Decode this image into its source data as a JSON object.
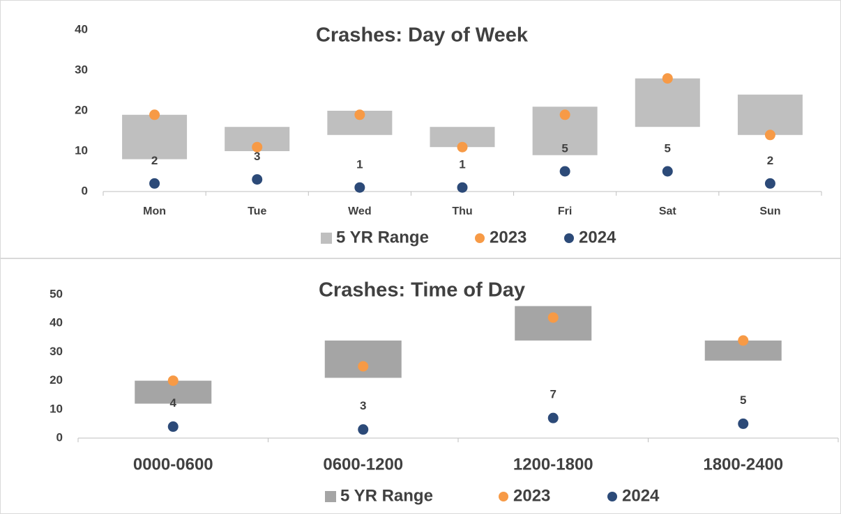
{
  "chart_data": [
    {
      "type": "range_dot",
      "title": "Crashes:  Day of Week",
      "categories": [
        "Mon",
        "Tue",
        "Wed",
        "Thu",
        "Fri",
        "Sat",
        "Sun"
      ],
      "series": [
        {
          "name": "5 YR Range",
          "color": "#bfbfbf",
          "low": [
            8,
            10,
            14,
            11,
            9,
            16,
            14
          ],
          "high": [
            19,
            16,
            20,
            16,
            21,
            28,
            24
          ]
        },
        {
          "name": "2023",
          "color": "#f79a46",
          "values": [
            19,
            11,
            19,
            11,
            19,
            28,
            14
          ]
        },
        {
          "name": "2024",
          "color": "#2c4a78",
          "values": [
            2,
            3,
            1,
            1,
            5,
            5,
            2
          ]
        }
      ],
      "ylim": [
        0,
        40
      ],
      "yticks": [
        0,
        10,
        20,
        30,
        40
      ],
      "data_labels_series": "2024"
    },
    {
      "type": "range_dot",
      "title": "Crashes:  Time of Day",
      "categories": [
        "0000-0600",
        "0600-1200",
        "1200-1800",
        "1800-2400"
      ],
      "series": [
        {
          "name": "5 YR Range",
          "color": "#a5a5a5",
          "low": [
            12,
            21,
            34,
            27
          ],
          "high": [
            20,
            34,
            46,
            34
          ]
        },
        {
          "name": "2023",
          "color": "#f79a46",
          "values": [
            20,
            25,
            42,
            34
          ]
        },
        {
          "name": "2024",
          "color": "#2c4a78",
          "values": [
            4,
            3,
            7,
            5
          ]
        }
      ],
      "ylim": [
        0,
        50
      ],
      "yticks": [
        0,
        10,
        20,
        30,
        40,
        50
      ],
      "data_labels_series": "2024"
    }
  ]
}
